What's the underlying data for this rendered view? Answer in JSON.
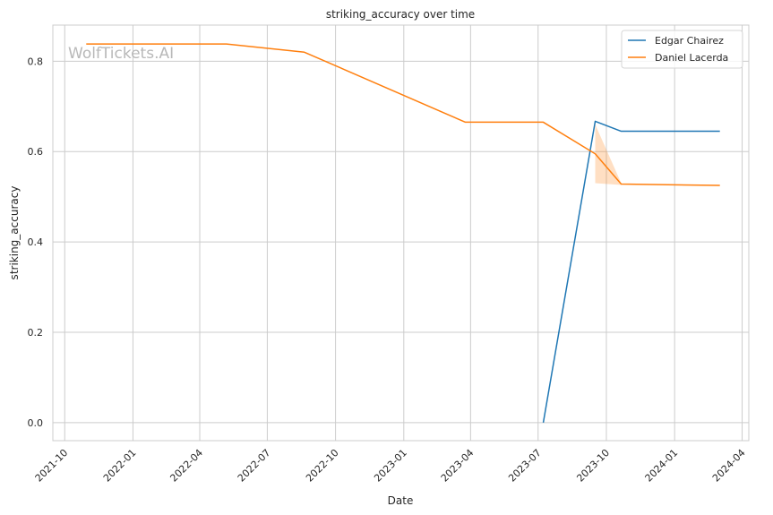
{
  "watermark": "WolfTickets.AI",
  "chart_data": {
    "type": "line",
    "title": "striking_accuracy over time",
    "xlabel": "Date",
    "ylabel": "striking_accuracy",
    "x_type": "date",
    "xlim": [
      "2021-09-15",
      "2024-04-10"
    ],
    "ylim": [
      -0.04,
      0.88
    ],
    "x_ticks": [
      "2021-10",
      "2022-01",
      "2022-04",
      "2022-07",
      "2022-10",
      "2023-01",
      "2023-04",
      "2023-07",
      "2023-10",
      "2024-01",
      "2024-04"
    ],
    "y_ticks": [
      0.0,
      0.2,
      0.4,
      0.6,
      0.8
    ],
    "y_tick_labels": [
      "0.0",
      "0.2",
      "0.4",
      "0.6",
      "0.8"
    ],
    "grid": true,
    "legend_position": "top-right",
    "series": [
      {
        "name": "Edgar Chairez",
        "color": "#1f77b4",
        "points": [
          {
            "x": "2023-07-08",
            "y": 0.0
          },
          {
            "x": "2023-09-16",
            "y": 0.667
          },
          {
            "x": "2023-10-21",
            "y": 0.645
          },
          {
            "x": "2024-03-02",
            "y": 0.645
          }
        ]
      },
      {
        "name": "Daniel Lacerda",
        "color": "#ff7f0e",
        "points": [
          {
            "x": "2021-10-30",
            "y": 0.838
          },
          {
            "x": "2022-05-07",
            "y": 0.838
          },
          {
            "x": "2022-08-20",
            "y": 0.82
          },
          {
            "x": "2023-03-25",
            "y": 0.665
          },
          {
            "x": "2023-07-08",
            "y": 0.665
          },
          {
            "x": "2023-09-16",
            "y": 0.595
          },
          {
            "x": "2023-10-21",
            "y": 0.528
          },
          {
            "x": "2024-03-02",
            "y": 0.525
          }
        ],
        "band": [
          {
            "x": "2023-09-16",
            "low": 0.53,
            "high": 0.66
          },
          {
            "x": "2023-10-21",
            "low": 0.526,
            "high": 0.53
          }
        ]
      }
    ]
  }
}
